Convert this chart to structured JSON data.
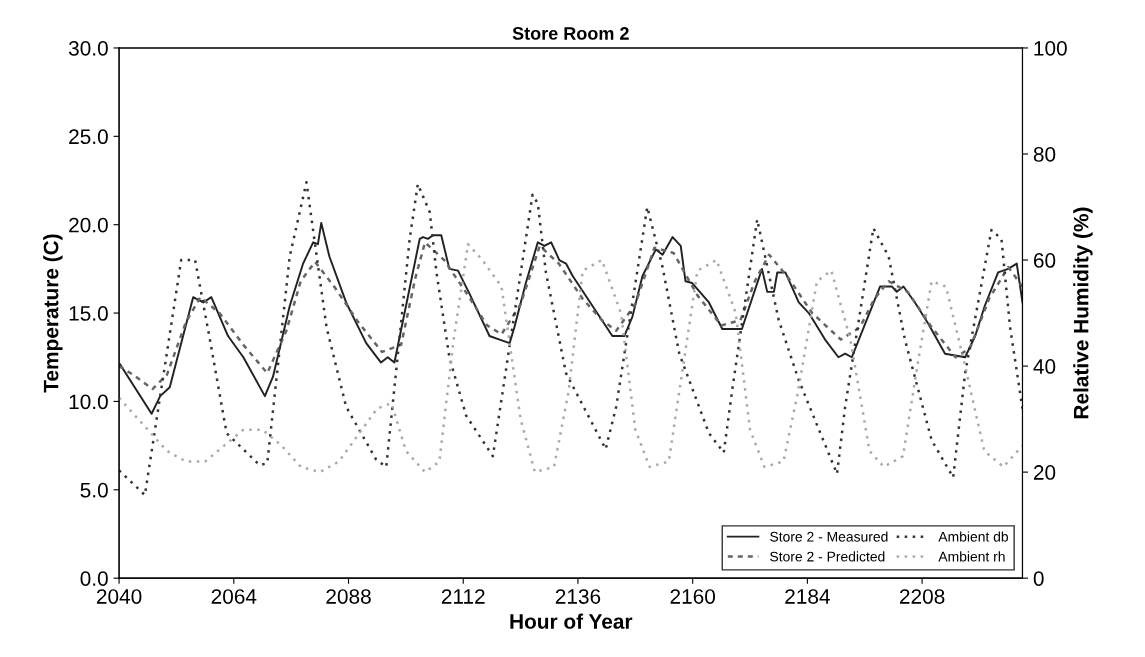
{
  "chart_data": {
    "type": "line",
    "title": "Store Room 2",
    "xlabel": "Hour of Year",
    "ylabel": "Temperature (C)",
    "y2label": "Relative Humidity (%)",
    "xlim": [
      2040,
      2229
    ],
    "xticks": [
      2040,
      2064,
      2088,
      2112,
      2136,
      2160,
      2184,
      2208
    ],
    "ylim": [
      0,
      30
    ],
    "yticks": [
      {
        "value": 0,
        "label": "0.0"
      },
      {
        "value": 5,
        "label": "5.0"
      },
      {
        "value": 10,
        "label": "10.0"
      },
      {
        "value": 15,
        "label": "15.0"
      },
      {
        "value": 20,
        "label": "20.0"
      },
      {
        "value": 25,
        "label": "25.0"
      },
      {
        "value": 30,
        "label": "30.0"
      }
    ],
    "y2lim": [
      0,
      100
    ],
    "y2ticks": [
      0,
      20,
      40,
      60,
      80,
      100
    ],
    "grid": false,
    "legend": "bottom right",
    "marker": "none",
    "series": [
      {
        "name": "Store 2 - Measured",
        "color": "#222222",
        "line_style": "solid",
        "x": [
          2040.2,
          2046.8,
          2048.6,
          2050.6,
          2055.5,
          2057.6,
          2059.3,
          2062.8,
          2066,
          2070.5,
          2072.2,
          2075.7,
          2078.5,
          2080.6,
          2081.6,
          2082.3,
          2084,
          2087.5,
          2091.7,
          2094.8,
          2096.2,
          2097.6,
          2102.9,
          2103.6,
          2104.6,
          2105.7,
          2107.4,
          2109.1,
          2110.9,
          2113.3,
          2117.5,
          2119.6,
          2121.7,
          2122.7,
          2125.1,
          2127.6,
          2129,
          2130.4,
          2132.1,
          2133.5,
          2134.9,
          2143.2,
          2145.7,
          2147.4,
          2149.5,
          2152.3,
          2153.7,
          2155.8,
          2157.5,
          2158.5,
          2159.9,
          2163.4,
          2166.2,
          2170.3,
          2174.5,
          2175.6,
          2177,
          2177.7,
          2179.4,
          2182.2,
          2184.3,
          2187.7,
          2190.5,
          2191.9,
          2193.3,
          2196.1,
          2199.2,
          2201.7,
          2202.7,
          2204.1,
          2206.5,
          2209.3,
          2212.8,
          2217,
          2219.1,
          2221.1,
          2223.9,
          2226,
          2227.8,
          2229
        ],
        "values": [
          12.1,
          9.3,
          10.3,
          10.8,
          15.9,
          15.6,
          15.9,
          13.7,
          12.5,
          10.3,
          11.4,
          15.4,
          17.8,
          19.0,
          18.9,
          20.1,
          18.2,
          15.6,
          13.3,
          12.2,
          12.5,
          12.2,
          19.2,
          19.3,
          19.2,
          19.4,
          19.4,
          17.5,
          17.4,
          16.1,
          13.7,
          13.5,
          13.3,
          14.2,
          16.7,
          19.0,
          18.8,
          19.0,
          18.0,
          17.8,
          17.1,
          13.7,
          13.7,
          14.8,
          17.1,
          18.6,
          18.3,
          19.3,
          18.8,
          16.8,
          16.7,
          15.6,
          14.1,
          14.1,
          17.5,
          16.2,
          16.2,
          17.3,
          17.3,
          15.6,
          15.0,
          13.5,
          12.5,
          12.7,
          12.5,
          14.4,
          16.5,
          16.5,
          16.2,
          16.5,
          15.6,
          14.4,
          12.7,
          12.5,
          13.7,
          15.4,
          17.3,
          17.5,
          17.8,
          15.6
        ]
      },
      {
        "name": "Store 2 - Predicted",
        "color": "#666666",
        "line_style": "dashed",
        "x": [
          2040,
          2043,
          2047,
          2050,
          2054,
          2057,
          2061,
          2066,
          2071,
          2075,
          2078,
          2081,
          2085,
          2090,
          2095,
          2099,
          2102,
          2104,
          2108,
          2113,
          2117,
          2120,
          2124,
          2128,
          2132,
          2137,
          2141,
          2144,
          2148,
          2152,
          2156,
          2161,
          2166,
          2170,
          2173,
          2176,
          2180,
          2185,
          2191,
          2195,
          2198,
          2201,
          2205,
          2210,
          2215,
          2218,
          2222,
          2226,
          2229
        ],
        "values": [
          12.0,
          11.5,
          10.7,
          11.5,
          14.5,
          15.9,
          15.0,
          13.2,
          11.6,
          14.0,
          16.8,
          17.9,
          16.5,
          14.5,
          12.8,
          13.2,
          17.0,
          19.0,
          18.0,
          16.0,
          14.3,
          13.8,
          15.5,
          18.8,
          17.8,
          15.8,
          14.6,
          14.0,
          15.5,
          18.7,
          18.4,
          16.0,
          14.3,
          14.6,
          16.8,
          18.3,
          17.0,
          15.0,
          13.5,
          14.2,
          15.8,
          16.8,
          16.2,
          14.2,
          12.5,
          13.0,
          15.8,
          17.6,
          16.5
        ]
      },
      {
        "name": "Ambient db",
        "color": "#333333",
        "line_style": "dotted",
        "x": [
          2040,
          2045.4,
          2053,
          2055.9,
          2059,
          2062.5,
          2069.4,
          2071,
          2075.7,
          2079.2,
          2083.4,
          2087.5,
          2093.8,
          2095.9,
          2100.8,
          2102.5,
          2105,
          2106.4,
          2109.1,
          2112.6,
          2118.2,
          2126.5,
          2127.6,
          2129.3,
          2133.5,
          2141.8,
          2144,
          2150.5,
          2153.7,
          2157.2,
          2163.4,
          2166.5,
          2168.3,
          2173.5,
          2178,
          2182.2,
          2190.2,
          2191.9,
          2197.8,
          2201,
          2204.4,
          2210,
          2214.5,
          2217,
          2222.5,
          2224.6,
          2226.4,
          2229
        ],
        "values": [
          6.1,
          4.7,
          18.0,
          18.0,
          13.5,
          8.2,
          6.4,
          6.5,
          18.2,
          22.4,
          14.2,
          9.7,
          6.7,
          6.3,
          19.2,
          22.3,
          20.7,
          17.3,
          12.5,
          9.2,
          6.9,
          21.7,
          21.2,
          17.3,
          11.6,
          7.3,
          9.7,
          21.0,
          17.6,
          12.7,
          8.2,
          7.1,
          10.7,
          20.3,
          14.6,
          11.2,
          5.9,
          9.7,
          19.8,
          18.2,
          13.5,
          7.8,
          5.7,
          11.6,
          19.7,
          19.2,
          14.2,
          9.6
        ]
      },
      {
        "name": "Ambient rh",
        "color": "#aaaaaa",
        "line_style": "dotted",
        "axis": "y2",
        "x": [
          2040,
          2043,
          2047,
          2050,
          2054,
          2058,
          2062,
          2066,
          2070,
          2074,
          2078,
          2082,
          2086,
          2090,
          2094,
          2097,
          2100,
          2104,
          2107,
          2110,
          2113,
          2116,
          2120,
          2124,
          2127,
          2131,
          2134,
          2137,
          2141,
          2145,
          2148,
          2151,
          2155,
          2158,
          2161,
          2165,
          2169,
          2172,
          2175,
          2179,
          2182,
          2186,
          2189,
          2193,
          2197,
          2200,
          2204,
          2207,
          2210,
          2213,
          2217,
          2221,
          2225,
          2229
        ],
        "values": [
          34,
          31,
          27,
          24,
          22,
          22,
          25,
          28,
          28,
          25,
          21,
          20,
          22,
          27,
          32,
          33,
          24,
          20,
          22,
          45,
          63,
          60,
          55,
          30,
          20,
          21,
          35,
          58,
          60,
          50,
          28,
          21,
          22,
          40,
          58,
          60,
          50,
          28,
          21,
          22,
          35,
          56,
          58,
          45,
          24,
          21,
          23,
          40,
          56,
          55,
          40,
          24,
          21,
          25
        ]
      }
    ]
  }
}
